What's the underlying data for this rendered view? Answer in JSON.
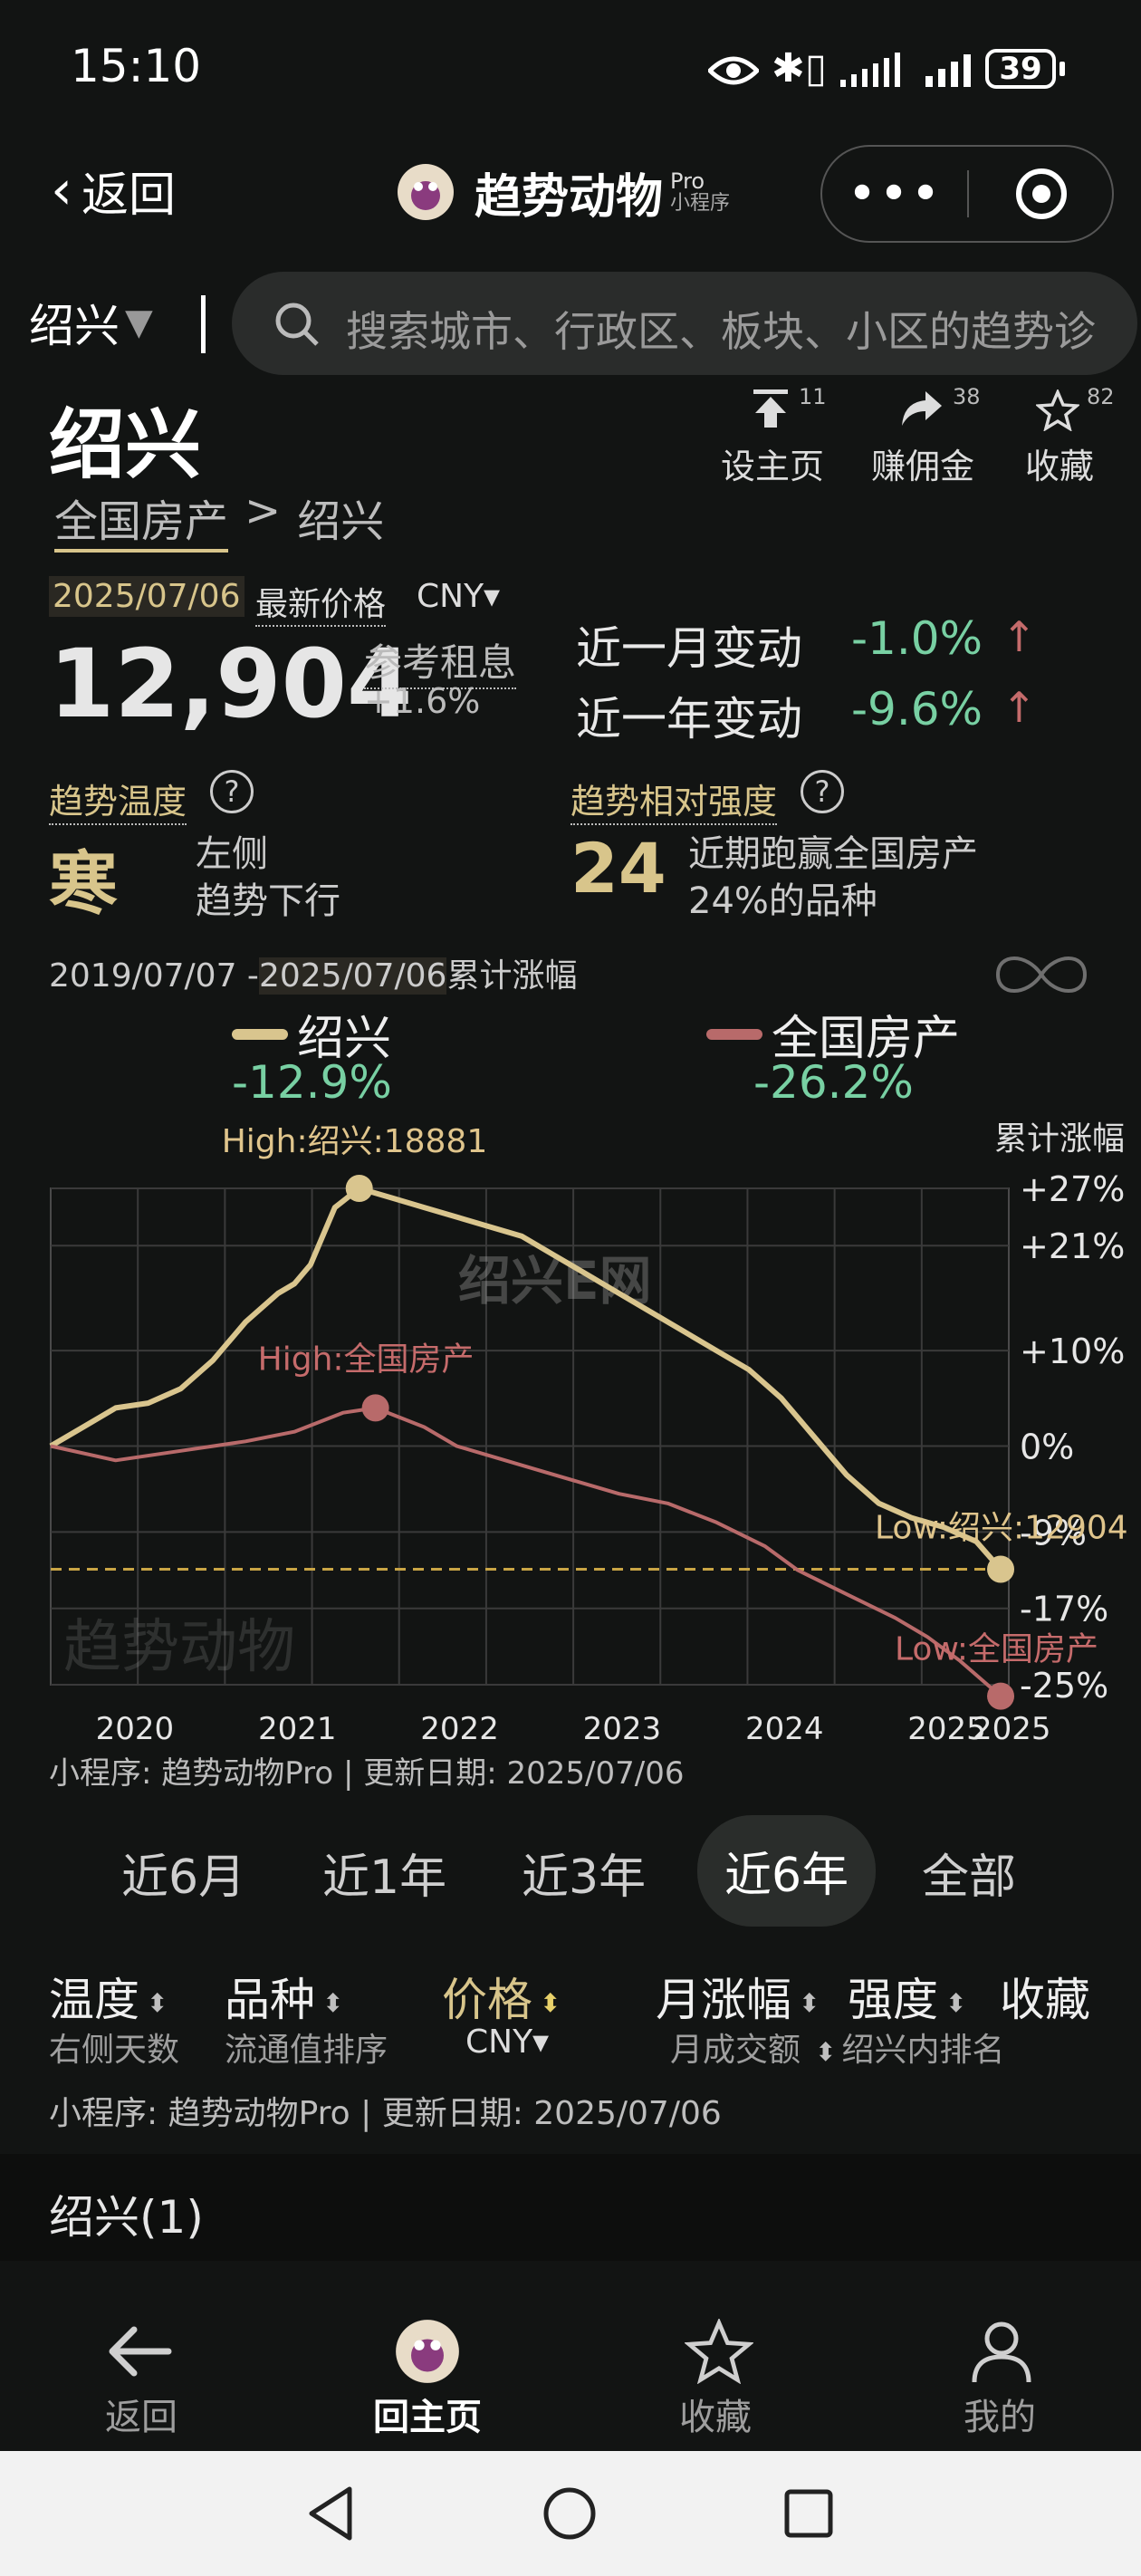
{
  "status": {
    "time": "15:10",
    "battery": "39"
  },
  "nav": {
    "back_label": "返回",
    "title": "趋势动物",
    "title_suffix_top": "Pro",
    "title_suffix_bottom": "小程序"
  },
  "search": {
    "city": "绍兴",
    "placeholder": "搜索城市、行政区、板块、小区的趋势诊"
  },
  "header": {
    "city": "绍兴",
    "actions": [
      {
        "label": "设主页",
        "count": "11"
      },
      {
        "label": "赚佣金",
        "count": "38"
      },
      {
        "label": "收藏",
        "count": "82"
      }
    ],
    "breadcrumb_root": "全国房产",
    "breadcrumb_sep": ">",
    "breadcrumb_leaf": "绍兴"
  },
  "price": {
    "date": "2025/07/06",
    "label": "最新价格",
    "currency": "CNY▾",
    "value": "12,904",
    "rent_label": "参考租息",
    "rent_value": "+1.6%",
    "month_change_label": "近一月变动",
    "month_change_value": "-1.0%",
    "year_change_label": "近一年变动",
    "year_change_value": "-9.6%"
  },
  "trend": {
    "temp_label": "趋势温度",
    "temp_value": "寒",
    "temp_desc1": "左侧",
    "temp_desc2": "趋势下行",
    "strength_label": "趋势相对强度",
    "strength_value": "24",
    "strength_desc1": "近期跑赢全国房产",
    "strength_desc2": "24%的品种"
  },
  "chart_header": {
    "range_start": "2019/07/07 -",
    "range_end": "2025/07/06",
    "range_suffix": "累计涨幅",
    "right_axis_title": "累计涨幅"
  },
  "legend": [
    {
      "name": "绍兴",
      "change": "-12.9%",
      "color": "#d9c58e"
    },
    {
      "name": "全国房产",
      "change": "-26.2%",
      "color": "#b86a6a"
    }
  ],
  "chart_data": {
    "type": "line",
    "x_ticks": [
      "2020",
      "2021",
      "2022",
      "2023",
      "2024",
      "2025",
      "2025"
    ],
    "y_ticks": [
      "+27%",
      "+21%",
      "+10%",
      "0%",
      "-9%",
      "-17%",
      "-25%"
    ],
    "ylim": [
      -25,
      27
    ],
    "series": [
      {
        "name": "绍兴",
        "color": "#d9c58e",
        "points": [
          [
            2019.5,
            0
          ],
          [
            2019.7,
            2
          ],
          [
            2019.9,
            4
          ],
          [
            2020.1,
            4.5
          ],
          [
            2020.3,
            6
          ],
          [
            2020.5,
            9
          ],
          [
            2020.7,
            13
          ],
          [
            2020.9,
            16
          ],
          [
            2021.0,
            17
          ],
          [
            2021.1,
            19
          ],
          [
            2021.25,
            25
          ],
          [
            2021.4,
            27
          ],
          [
            2021.6,
            26
          ],
          [
            2021.8,
            25
          ],
          [
            2022.0,
            24
          ],
          [
            2022.2,
            23
          ],
          [
            2022.4,
            22
          ],
          [
            2022.6,
            20
          ],
          [
            2022.8,
            18
          ],
          [
            2023.0,
            16
          ],
          [
            2023.2,
            14
          ],
          [
            2023.4,
            12
          ],
          [
            2023.6,
            10
          ],
          [
            2023.8,
            8
          ],
          [
            2024.0,
            5
          ],
          [
            2024.2,
            1
          ],
          [
            2024.4,
            -3
          ],
          [
            2024.6,
            -6
          ],
          [
            2024.8,
            -7.5
          ],
          [
            2025.0,
            -8.5
          ],
          [
            2025.2,
            -10
          ],
          [
            2025.35,
            -12.9
          ]
        ]
      },
      {
        "name": "全国房产",
        "color": "#b86a6a",
        "points": [
          [
            2019.5,
            0
          ],
          [
            2019.9,
            -1.5
          ],
          [
            2020.3,
            -0.5
          ],
          [
            2020.7,
            0.5
          ],
          [
            2021.0,
            1.5
          ],
          [
            2021.3,
            3.5
          ],
          [
            2021.5,
            4
          ],
          [
            2021.8,
            2
          ],
          [
            2022.0,
            0
          ],
          [
            2022.2,
            -1
          ],
          [
            2022.5,
            -2.5
          ],
          [
            2022.8,
            -4
          ],
          [
            2023.0,
            -5
          ],
          [
            2023.3,
            -6
          ],
          [
            2023.6,
            -8
          ],
          [
            2023.9,
            -10.5
          ],
          [
            2024.1,
            -13
          ],
          [
            2024.4,
            -15.5
          ],
          [
            2024.7,
            -18
          ],
          [
            2024.9,
            -20
          ],
          [
            2025.1,
            -22.5
          ],
          [
            2025.35,
            -26.2
          ]
        ]
      }
    ],
    "annotations": [
      {
        "text": "High:绍兴:18881",
        "series": "绍兴"
      },
      {
        "text": "High:全国房产",
        "series": "全国房产"
      },
      {
        "text": "Low:绍兴:12904",
        "series": "绍兴"
      },
      {
        "text": "Low:全国房产",
        "series": "全国房产"
      }
    ],
    "reference_line_value": -12.9,
    "grid": true
  },
  "chart_footer": "小程序: 趋势动物Pro | 更新日期: 2025/07/06",
  "watermarks": {
    "brand": "趋势动物",
    "site": "绍兴E网"
  },
  "range_tabs": [
    {
      "label": "近6月",
      "active": false
    },
    {
      "label": "近1年",
      "active": false
    },
    {
      "label": "近3年",
      "active": false
    },
    {
      "label": "近6年",
      "active": true
    },
    {
      "label": "全部",
      "active": false
    }
  ],
  "table_header": {
    "col1": "温度",
    "col1_sub": "右侧天数",
    "col2": "品种",
    "col2_sub": "流通值排序",
    "col3": "价格",
    "col3_sub": "CNY▾",
    "col4": "月涨幅",
    "col4_sub": "月成交额",
    "col5": "强度",
    "col5_sub": "绍兴内排名",
    "col6": "收藏"
  },
  "table_footer": "小程序: 趋势动物Pro | 更新日期:  2025/07/06",
  "group": {
    "label": "绍兴(1)"
  },
  "bottom_nav": [
    {
      "label": "返回"
    },
    {
      "label": "回主页"
    },
    {
      "label": "收藏"
    },
    {
      "label": "我的"
    }
  ]
}
